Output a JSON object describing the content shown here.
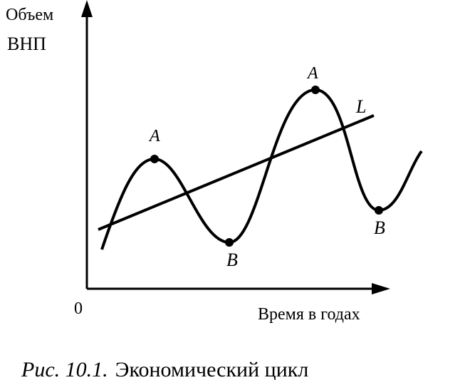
{
  "diagram": {
    "y_axis_label": [
      "Объем",
      "ВНП"
    ],
    "origin_label": "0",
    "x_axis_label": "Время в годах",
    "points": [
      {
        "label": "A"
      },
      {
        "label": "B"
      },
      {
        "label": "A"
      },
      {
        "label": "B"
      }
    ],
    "trend_label": "L"
  },
  "caption": {
    "number": "Рис. 10.1.",
    "text": "Экономический цикл"
  }
}
